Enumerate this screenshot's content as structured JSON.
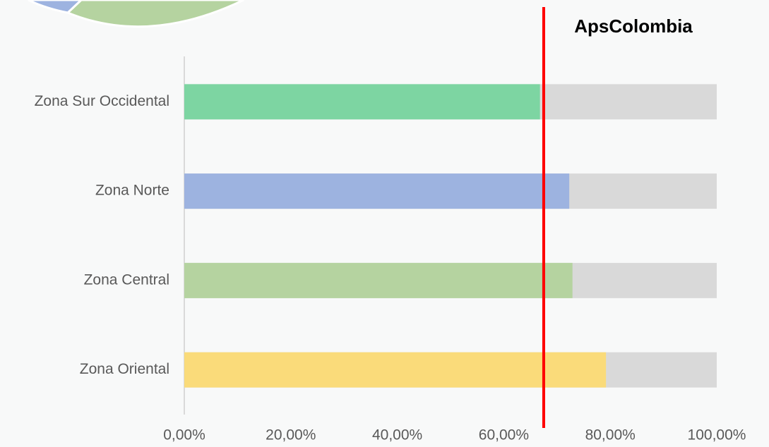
{
  "chart_data": {
    "type": "hbar",
    "categories": [
      "Zona Sur Occidental",
      "Zona Norte",
      "Zona Central",
      "Zona Oriental"
    ],
    "values": [
      66.8,
      72.3,
      72.9,
      79.2
    ],
    "colors": [
      "#7dd5a2",
      "#9db3e0",
      "#b5d3a0",
      "#fadb7a"
    ],
    "track_color": "#d9d9d9",
    "xlim": [
      0,
      100
    ],
    "xticks": [
      {
        "value": 0,
        "label": "0,00%"
      },
      {
        "value": 20,
        "label": "20,00%"
      },
      {
        "value": 40,
        "label": "40,00%"
      },
      {
        "value": 60,
        "label": "60,00%"
      },
      {
        "value": 80,
        "label": "80,00%"
      },
      {
        "value": 100,
        "label": "100,00%"
      }
    ],
    "reference_line": {
      "label": "ApsColombia",
      "value": 67.5,
      "color": "#ff0000"
    }
  }
}
